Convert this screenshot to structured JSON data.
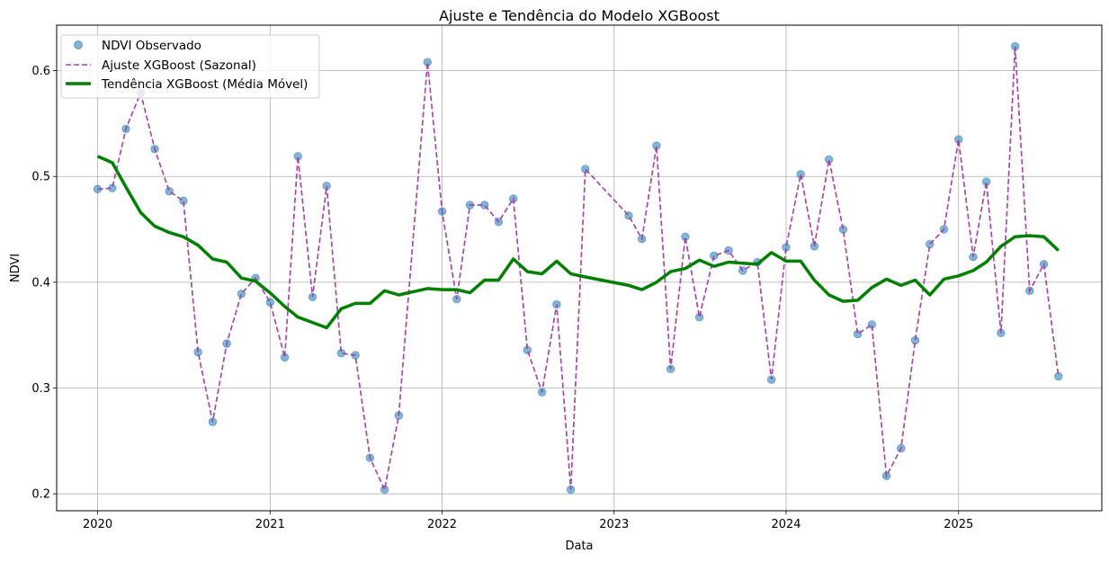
{
  "chart_data": {
    "type": "line",
    "title": "Ajuste e Tendência do Modelo XGBoost",
    "xlabel": "Data",
    "ylabel": "NDVI",
    "x_ticks": [
      "2020",
      "2021",
      "2022",
      "2023",
      "2024",
      "2025"
    ],
    "y_ticks": [
      "0.2",
      "0.3",
      "0.4",
      "0.5",
      "0.6"
    ],
    "xlim": [
      "2019-10-06",
      "2025-11-01"
    ],
    "ylim": [
      0.184,
      0.643
    ],
    "grid": true,
    "legend_position": "top-left",
    "series": [
      {
        "name": "NDVI Observado",
        "style": "markers",
        "color": "#1f77b4",
        "points": [
          [
            "2020-01-01",
            0.488
          ],
          [
            "2020-02-01",
            0.489
          ],
          [
            "2020-03-01",
            0.545
          ],
          [
            "2020-04-01",
            0.579
          ],
          [
            "2020-05-01",
            0.526
          ],
          [
            "2020-06-01",
            0.486
          ],
          [
            "2020-07-01",
            0.477
          ],
          [
            "2020-08-01",
            0.334
          ],
          [
            "2020-09-01",
            0.268
          ],
          [
            "2020-10-01",
            0.342
          ],
          [
            "2020-11-01",
            0.389
          ],
          [
            "2020-12-01",
            0.404
          ],
          [
            "2021-01-01",
            0.381
          ],
          [
            "2021-02-01",
            0.329
          ],
          [
            "2021-03-01",
            0.519
          ],
          [
            "2021-04-01",
            0.386
          ],
          [
            "2021-05-01",
            0.491
          ],
          [
            "2021-06-01",
            0.333
          ],
          [
            "2021-07-01",
            0.331
          ],
          [
            "2021-08-01",
            0.234
          ],
          [
            "2021-09-01",
            0.204
          ],
          [
            "2021-10-01",
            0.274
          ],
          [
            "2021-12-01",
            0.608
          ],
          [
            "2022-01-01",
            0.467
          ],
          [
            "2022-02-01",
            0.384
          ],
          [
            "2022-03-01",
            0.473
          ],
          [
            "2022-04-01",
            0.473
          ],
          [
            "2022-05-01",
            0.457
          ],
          [
            "2022-06-01",
            0.479
          ],
          [
            "2022-07-01",
            0.336
          ],
          [
            "2022-08-01",
            0.296
          ],
          [
            "2022-09-01",
            0.379
          ],
          [
            "2022-10-01",
            0.204
          ],
          [
            "2022-11-01",
            0.507
          ],
          [
            "2023-02-01",
            0.463
          ],
          [
            "2023-03-01",
            0.441
          ],
          [
            "2023-04-01",
            0.529
          ],
          [
            "2023-05-01",
            0.318
          ],
          [
            "2023-06-01",
            0.443
          ],
          [
            "2023-07-01",
            0.367
          ],
          [
            "2023-08-01",
            0.425
          ],
          [
            "2023-09-01",
            0.43
          ],
          [
            "2023-10-01",
            0.411
          ],
          [
            "2023-11-01",
            0.419
          ],
          [
            "2023-12-01",
            0.308
          ],
          [
            "2024-01-01",
            0.433
          ],
          [
            "2024-02-01",
            0.502
          ],
          [
            "2024-03-01",
            0.434
          ],
          [
            "2024-04-01",
            0.516
          ],
          [
            "2024-05-01",
            0.45
          ],
          [
            "2024-06-01",
            0.351
          ],
          [
            "2024-07-01",
            0.36
          ],
          [
            "2024-08-01",
            0.217
          ],
          [
            "2024-09-01",
            0.243
          ],
          [
            "2024-10-01",
            0.345
          ],
          [
            "2024-11-01",
            0.436
          ],
          [
            "2024-12-01",
            0.45
          ],
          [
            "2025-01-01",
            0.535
          ],
          [
            "2025-02-01",
            0.424
          ],
          [
            "2025-03-01",
            0.495
          ],
          [
            "2025-04-01",
            0.352
          ],
          [
            "2025-05-01",
            0.623
          ],
          [
            "2025-06-01",
            0.392
          ],
          [
            "2025-07-01",
            0.417
          ],
          [
            "2025-08-01",
            0.311
          ]
        ]
      },
      {
        "name": "Ajuste XGBoost (Sazonal)",
        "style": "dashed",
        "color": "#a040a0",
        "points": [
          [
            "2020-01-01",
            0.488
          ],
          [
            "2020-02-01",
            0.489
          ],
          [
            "2020-03-01",
            0.545
          ],
          [
            "2020-04-01",
            0.579
          ],
          [
            "2020-05-01",
            0.526
          ],
          [
            "2020-06-01",
            0.486
          ],
          [
            "2020-07-01",
            0.477
          ],
          [
            "2020-08-01",
            0.334
          ],
          [
            "2020-09-01",
            0.268
          ],
          [
            "2020-10-01",
            0.342
          ],
          [
            "2020-11-01",
            0.389
          ],
          [
            "2020-12-01",
            0.404
          ],
          [
            "2021-01-01",
            0.381
          ],
          [
            "2021-02-01",
            0.329
          ],
          [
            "2021-03-01",
            0.519
          ],
          [
            "2021-04-01",
            0.386
          ],
          [
            "2021-05-01",
            0.491
          ],
          [
            "2021-06-01",
            0.333
          ],
          [
            "2021-07-01",
            0.331
          ],
          [
            "2021-08-01",
            0.234
          ],
          [
            "2021-09-01",
            0.204
          ],
          [
            "2021-10-01",
            0.274
          ],
          [
            "2021-12-01",
            0.608
          ],
          [
            "2022-01-01",
            0.467
          ],
          [
            "2022-02-01",
            0.384
          ],
          [
            "2022-03-01",
            0.473
          ],
          [
            "2022-04-01",
            0.473
          ],
          [
            "2022-05-01",
            0.457
          ],
          [
            "2022-06-01",
            0.479
          ],
          [
            "2022-07-01",
            0.336
          ],
          [
            "2022-08-01",
            0.296
          ],
          [
            "2022-09-01",
            0.379
          ],
          [
            "2022-10-01",
            0.204
          ],
          [
            "2022-11-01",
            0.507
          ],
          [
            "2023-02-01",
            0.463
          ],
          [
            "2023-03-01",
            0.441
          ],
          [
            "2023-04-01",
            0.529
          ],
          [
            "2023-05-01",
            0.318
          ],
          [
            "2023-06-01",
            0.443
          ],
          [
            "2023-07-01",
            0.367
          ],
          [
            "2023-08-01",
            0.425
          ],
          [
            "2023-09-01",
            0.43
          ],
          [
            "2023-10-01",
            0.411
          ],
          [
            "2023-11-01",
            0.419
          ],
          [
            "2023-12-01",
            0.308
          ],
          [
            "2024-01-01",
            0.433
          ],
          [
            "2024-02-01",
            0.502
          ],
          [
            "2024-03-01",
            0.434
          ],
          [
            "2024-04-01",
            0.516
          ],
          [
            "2024-05-01",
            0.45
          ],
          [
            "2024-06-01",
            0.351
          ],
          [
            "2024-07-01",
            0.36
          ],
          [
            "2024-08-01",
            0.217
          ],
          [
            "2024-09-01",
            0.243
          ],
          [
            "2024-10-01",
            0.345
          ],
          [
            "2024-11-01",
            0.436
          ],
          [
            "2024-12-01",
            0.45
          ],
          [
            "2025-01-01",
            0.535
          ],
          [
            "2025-02-01",
            0.424
          ],
          [
            "2025-03-01",
            0.495
          ],
          [
            "2025-04-01",
            0.352
          ],
          [
            "2025-05-01",
            0.623
          ],
          [
            "2025-06-01",
            0.392
          ],
          [
            "2025-07-01",
            0.417
          ],
          [
            "2025-08-01",
            0.311
          ]
        ]
      },
      {
        "name": "Tendência XGBoost (Média Móvel)",
        "style": "solid-thick",
        "color": "#007f00",
        "points": [
          [
            "2020-01-01",
            0.519
          ],
          [
            "2020-02-01",
            0.513
          ],
          [
            "2020-03-01",
            0.49
          ],
          [
            "2020-04-01",
            0.466
          ],
          [
            "2020-05-01",
            0.453
          ],
          [
            "2020-06-01",
            0.447
          ],
          [
            "2020-07-01",
            0.443
          ],
          [
            "2020-08-01",
            0.435
          ],
          [
            "2020-09-01",
            0.422
          ],
          [
            "2020-10-01",
            0.419
          ],
          [
            "2020-11-01",
            0.404
          ],
          [
            "2020-12-01",
            0.401
          ],
          [
            "2021-01-01",
            0.39
          ],
          [
            "2021-02-01",
            0.377
          ],
          [
            "2021-03-01",
            0.367
          ],
          [
            "2021-04-01",
            0.362
          ],
          [
            "2021-05-01",
            0.357
          ],
          [
            "2021-06-01",
            0.375
          ],
          [
            "2021-07-01",
            0.38
          ],
          [
            "2021-08-01",
            0.38
          ],
          [
            "2021-09-01",
            0.392
          ],
          [
            "2021-10-01",
            0.388
          ],
          [
            "2021-12-01",
            0.394
          ],
          [
            "2022-01-01",
            0.393
          ],
          [
            "2022-02-01",
            0.393
          ],
          [
            "2022-03-01",
            0.39
          ],
          [
            "2022-04-01",
            0.402
          ],
          [
            "2022-05-01",
            0.402
          ],
          [
            "2022-06-01",
            0.422
          ],
          [
            "2022-07-01",
            0.41
          ],
          [
            "2022-08-01",
            0.408
          ],
          [
            "2022-09-01",
            0.42
          ],
          [
            "2022-10-01",
            0.408
          ],
          [
            "2022-11-01",
            0.405
          ],
          [
            "2023-02-01",
            0.397
          ],
          [
            "2023-03-01",
            0.393
          ],
          [
            "2023-04-01",
            0.4
          ],
          [
            "2023-05-01",
            0.41
          ],
          [
            "2023-06-01",
            0.413
          ],
          [
            "2023-07-01",
            0.421
          ],
          [
            "2023-08-01",
            0.415
          ],
          [
            "2023-09-01",
            0.419
          ],
          [
            "2023-10-01",
            0.418
          ],
          [
            "2023-11-01",
            0.417
          ],
          [
            "2023-12-01",
            0.428
          ],
          [
            "2024-01-01",
            0.42
          ],
          [
            "2024-02-01",
            0.42
          ],
          [
            "2024-03-01",
            0.402
          ],
          [
            "2024-04-01",
            0.388
          ],
          [
            "2024-05-01",
            0.382
          ],
          [
            "2024-06-01",
            0.383
          ],
          [
            "2024-07-01",
            0.395
          ],
          [
            "2024-08-01",
            0.403
          ],
          [
            "2024-09-01",
            0.397
          ],
          [
            "2024-10-01",
            0.402
          ],
          [
            "2024-11-01",
            0.388
          ],
          [
            "2024-12-01",
            0.403
          ],
          [
            "2025-01-01",
            0.406
          ],
          [
            "2025-02-01",
            0.411
          ],
          [
            "2025-03-01",
            0.419
          ],
          [
            "2025-04-01",
            0.434
          ],
          [
            "2025-05-01",
            0.443
          ],
          [
            "2025-06-01",
            0.444
          ],
          [
            "2025-07-01",
            0.443
          ],
          [
            "2025-08-01",
            0.43
          ]
        ]
      }
    ]
  }
}
